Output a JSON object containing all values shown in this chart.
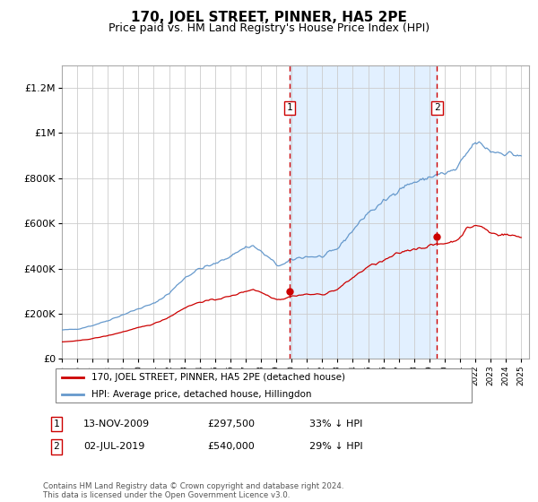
{
  "title": "170, JOEL STREET, PINNER, HA5 2PE",
  "subtitle": "Price paid vs. HM Land Registry's House Price Index (HPI)",
  "title_fontsize": 11,
  "subtitle_fontsize": 9,
  "ylabel_ticks": [
    "£0",
    "£200K",
    "£400K",
    "£600K",
    "£800K",
    "£1M",
    "£1.2M"
  ],
  "ytick_values": [
    0,
    200000,
    400000,
    600000,
    800000,
    1000000,
    1200000
  ],
  "ylim": [
    0,
    1300000
  ],
  "xlim_start": 1995.0,
  "xlim_end": 2025.5,
  "sale1_date": 2009.875,
  "sale1_price": 297500,
  "sale1_label": "1",
  "sale1_display": "13-NOV-2009",
  "sale1_amount": "£297,500",
  "sale1_hpi_pct": "33% ↓ HPI",
  "sale2_date": 2019.5,
  "sale2_price": 540000,
  "sale2_label": "2",
  "sale2_display": "02-JUL-2019",
  "sale2_amount": "£540,000",
  "sale2_hpi_pct": "29% ↓ HPI",
  "red_line_color": "#cc0000",
  "blue_line_color": "#6699cc",
  "shade_color": "#ddeeff",
  "vline_color": "#cc0000",
  "grid_color": "#cccccc",
  "legend_label_red": "170, JOEL STREET, PINNER, HA5 2PE (detached house)",
  "legend_label_blue": "HPI: Average price, detached house, Hillingdon",
  "footnote": "Contains HM Land Registry data © Crown copyright and database right 2024.\nThis data is licensed under the Open Government Licence v3.0."
}
